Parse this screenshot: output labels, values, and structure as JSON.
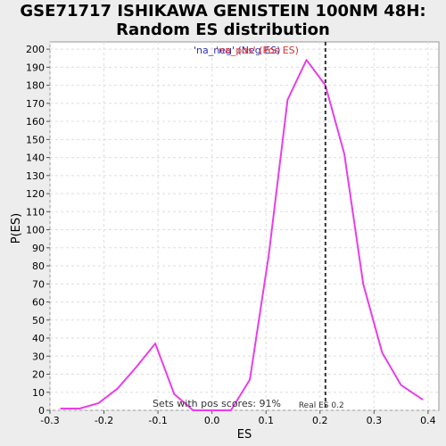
{
  "title_line1": "GSE71717 ISHIKAWA GENISTEIN 100NM 48H:",
  "title_line2": "Random ES distribution",
  "chart_data": {
    "type": "line",
    "xlabel": "ES",
    "ylabel": "P(ES)",
    "xlim": [
      -0.3,
      0.42
    ],
    "ylim": [
      0,
      204
    ],
    "x_ticks": [
      -0.3,
      -0.2,
      -0.1,
      0.0,
      0.1,
      0.2,
      0.3,
      0.4
    ],
    "x_tick_labels": [
      "-0.3",
      "-0.2",
      "-0.1",
      "0.0",
      "0.1",
      "0.2",
      "0.3",
      "0.4"
    ],
    "y_ticks": [
      0,
      10,
      20,
      30,
      40,
      50,
      60,
      70,
      80,
      90,
      100,
      110,
      120,
      130,
      140,
      150,
      160,
      170,
      180,
      190,
      200
    ],
    "series": [
      {
        "color": "#e83ee8",
        "x": [
          -0.28,
          -0.245,
          -0.21,
          -0.175,
          -0.14,
          -0.105,
          -0.07,
          -0.035,
          0.0,
          0.035,
          0.07,
          0.105,
          0.14,
          0.175,
          0.21,
          0.245,
          0.28,
          0.315,
          0.35,
          0.39
        ],
        "y": [
          1,
          1,
          4,
          12,
          24,
          37,
          9,
          0,
          0,
          0,
          17,
          86,
          172,
          194,
          180,
          142,
          70,
          32,
          14,
          6
        ]
      }
    ],
    "vline": {
      "x": 0.21,
      "style": "dashed",
      "color": "#333333",
      "label": "Real ES 0.2"
    },
    "legend": {
      "position": "top-center",
      "entries": [
        {
          "text": "'na_neg' (Neg ES)",
          "color": "#3333aa"
        },
        {
          "text": "'na_pos' (Pos ES)",
          "color": "#dd3333"
        }
      ]
    },
    "annotation": "Sets with pos scores: 91%",
    "grid": true
  }
}
